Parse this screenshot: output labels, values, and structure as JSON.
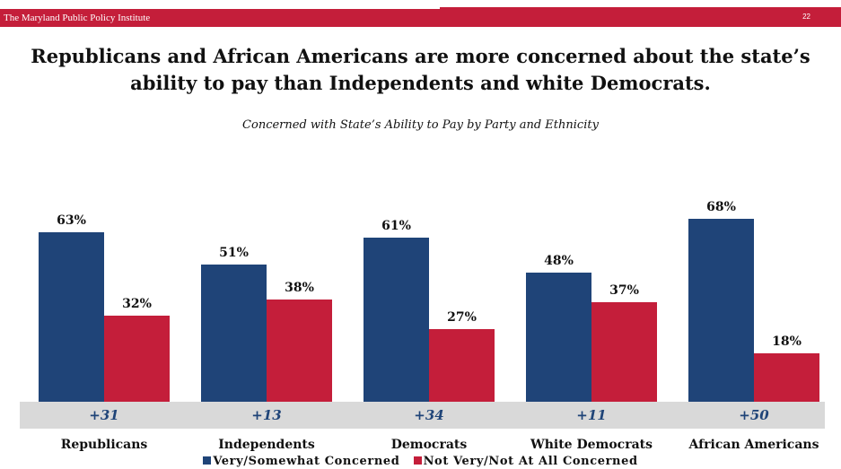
{
  "header": {
    "org_name": "The Maryland Public Policy Institute",
    "page_number": "22"
  },
  "colors": {
    "header_red": "#c41e3a",
    "concerned_blue": "#1f4478",
    "not_concerned_red": "#c41e3a",
    "band_gray": "#d9d9d9",
    "diff_text_blue": "#1f4478"
  },
  "chart_data": {
    "type": "bar",
    "title": "Republicans and African Americans are more concerned about the state’s ability to pay than Independents and white Democrats.",
    "subtitle": "Concerned with State’s Ability to Pay by Party and Ethnicity",
    "categories": [
      "Republicans",
      "Independents",
      "Democrats",
      "White Democrats",
      "African Americans"
    ],
    "series": [
      {
        "name": "Very/Somewhat Concerned",
        "color": "#1f4478",
        "values": [
          63,
          51,
          61,
          48,
          68
        ],
        "labels": [
          "63%",
          "51%",
          "61%",
          "48%",
          "68%"
        ]
      },
      {
        "name": "Not Very/Not At All Concerned",
        "color": "#c41e3a",
        "values": [
          32,
          38,
          27,
          37,
          18
        ],
        "labels": [
          "32%",
          "38%",
          "27%",
          "37%",
          "18%"
        ]
      }
    ],
    "differences": [
      "+31",
      "+13",
      "+34",
      "+11",
      "+50"
    ],
    "ylim": [
      0,
      100
    ],
    "grid": false,
    "legend_position": "bottom"
  }
}
